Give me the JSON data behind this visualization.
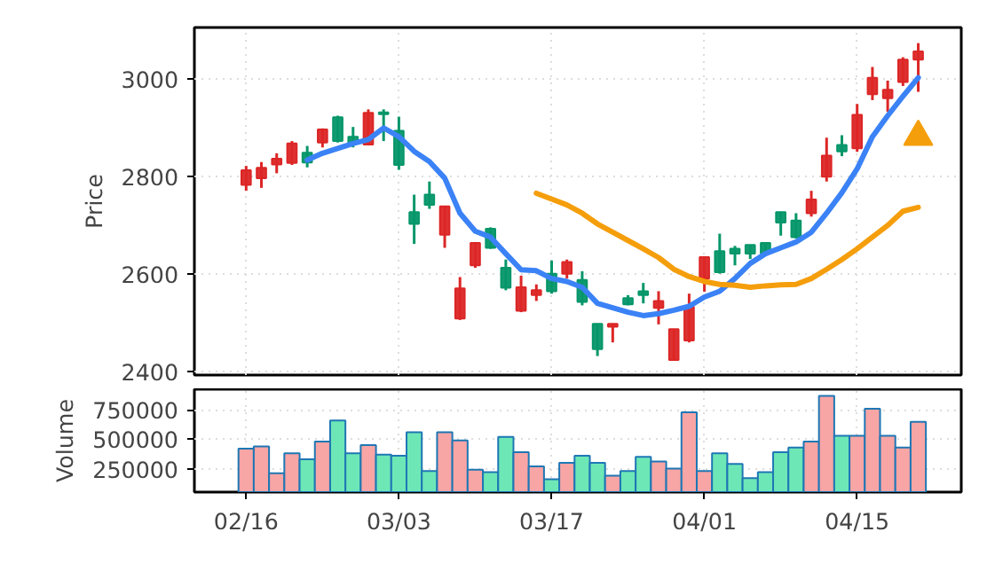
{
  "chart_data": [
    {
      "type": "candlestick",
      "ylabel": "Price",
      "categories": [
        null,
        null,
        null,
        null,
        null,
        null,
        null,
        null,
        null,
        null,
        null,
        null,
        null,
        null,
        null,
        null,
        null,
        null,
        null,
        null,
        null,
        null,
        null,
        null,
        null,
        null,
        null,
        null,
        null,
        null,
        null,
        null,
        null,
        null,
        null,
        null,
        null,
        null,
        null,
        null,
        null,
        null,
        null,
        null,
        null
      ],
      "ohlc": [
        [
          2782,
          2821,
          2770,
          2812
        ],
        [
          2796,
          2829,
          2776,
          2817
        ],
        [
          2824,
          2847,
          2806,
          2836
        ],
        [
          2827,
          2872,
          2823,
          2867
        ],
        [
          2848,
          2862,
          2818,
          2828
        ],
        [
          2869,
          2898,
          2859,
          2896
        ],
        [
          2921,
          2924,
          2869,
          2872
        ],
        [
          2881,
          2901,
          2859,
          2867
        ],
        [
          2865,
          2937,
          2863,
          2930
        ],
        [
          2931,
          2937,
          2872,
          2927
        ],
        [
          2893,
          2922,
          2813,
          2823
        ],
        [
          2726,
          2762,
          2661,
          2702
        ],
        [
          2762,
          2789,
          2733,
          2741
        ],
        [
          2680,
          2738,
          2653,
          2738
        ],
        [
          2508,
          2593,
          2505,
          2570
        ],
        [
          2617,
          2665,
          2612,
          2663
        ],
        [
          2692,
          2695,
          2651,
          2653
        ],
        [
          2612,
          2629,
          2566,
          2571
        ],
        [
          2524,
          2596,
          2521,
          2572
        ],
        [
          2556,
          2578,
          2544,
          2566
        ],
        [
          2600,
          2627,
          2559,
          2564
        ],
        [
          2600,
          2629,
          2590,
          2624
        ],
        [
          2587,
          2605,
          2535,
          2542
        ],
        [
          2497,
          2497,
          2431,
          2445
        ],
        [
          2491,
          2497,
          2459,
          2497
        ],
        [
          2550,
          2556,
          2535,
          2537
        ],
        [
          2564,
          2581,
          2539,
          2556
        ],
        [
          2530,
          2564,
          2496,
          2544
        ],
        [
          2423,
          2486,
          2423,
          2486
        ],
        [
          2463,
          2559,
          2459,
          2532
        ],
        [
          2590,
          2634,
          2563,
          2634
        ],
        [
          2646,
          2682,
          2600,
          2603
        ],
        [
          2651,
          2657,
          2617,
          2641
        ],
        [
          2659,
          2659,
          2630,
          2641
        ],
        [
          2663,
          2663,
          2639,
          2641
        ],
        [
          2726,
          2726,
          2678,
          2705
        ],
        [
          2709,
          2724,
          2672,
          2675
        ],
        [
          2724,
          2770,
          2717,
          2752
        ],
        [
          2799,
          2879,
          2789,
          2842
        ],
        [
          2864,
          2884,
          2841,
          2851
        ],
        [
          2857,
          2948,
          2850,
          2926
        ],
        [
          2968,
          3024,
          2956,
          3002
        ],
        [
          2960,
          2996,
          2932,
          2977
        ],
        [
          2993,
          3044,
          2985,
          3039
        ],
        [
          3039,
          3073,
          2973,
          3056
        ]
      ],
      "colors": [
        "#dc2626",
        "#dc2626",
        "#dc2626",
        "#dc2626",
        "#059669",
        "#dc2626",
        "#059669",
        "#059669",
        "#dc2626",
        "#059669",
        "#059669",
        "#059669",
        "#059669",
        "#dc2626",
        "#dc2626",
        "#dc2626",
        "#059669",
        "#059669",
        "#dc2626",
        "#dc2626",
        "#059669",
        "#dc2626",
        "#059669",
        "#059669",
        "#dc2626",
        "#059669",
        "#059669",
        "#dc2626",
        "#dc2626",
        "#dc2626",
        "#dc2626",
        "#059669",
        "#059669",
        "#059669",
        "#059669",
        "#059669",
        "#059669",
        "#dc2626",
        "#dc2626",
        "#059669",
        "#dc2626",
        "#dc2626",
        "#dc2626",
        "#dc2626",
        "#dc2626"
      ],
      "series": [
        {
          "type": "line",
          "color": "#3b82f6",
          "values": [
            null,
            null,
            null,
            null,
            2833,
            2847,
            2857,
            2867,
            2875,
            2899,
            2881,
            2851,
            2830,
            2796,
            2724,
            2687,
            2675,
            2641,
            2608,
            2606,
            2590,
            2584,
            2572,
            2539,
            2530,
            2521,
            2514,
            2518,
            2525,
            2533,
            2552,
            2564,
            2590,
            2621,
            2641,
            2653,
            2665,
            2685,
            2724,
            2766,
            2815,
            2881,
            2924,
            2964,
            3002
          ]
        },
        {
          "type": "line",
          "color": "#f59e0b",
          "values": [
            null,
            null,
            null,
            null,
            null,
            null,
            null,
            null,
            null,
            null,
            null,
            null,
            null,
            null,
            null,
            null,
            null,
            null,
            null,
            2765,
            2753,
            2741,
            2724,
            2702,
            2685,
            2668,
            2651,
            2633,
            2609,
            2594,
            2584,
            2578,
            2576,
            2572,
            2575,
            2577,
            2578,
            2590,
            2609,
            2629,
            2651,
            2675,
            2699,
            2728,
            2736
          ]
        },
        {
          "type": "scatter",
          "marker": "triangle",
          "color": "#f59e0b",
          "values": [
            null,
            null,
            null,
            null,
            null,
            null,
            null,
            null,
            null,
            null,
            null,
            null,
            null,
            null,
            null,
            null,
            null,
            null,
            null,
            null,
            null,
            null,
            null,
            null,
            null,
            null,
            null,
            null,
            null,
            null,
            null,
            null,
            null,
            null,
            null,
            null,
            null,
            null,
            null,
            null,
            null,
            null,
            null,
            null,
            2881
          ]
        }
      ],
      "ylim": [
        2392,
        3105
      ],
      "yticks": [
        2400,
        2600,
        2800,
        3000
      ],
      "grid": true,
      "tick_labels": "y"
    },
    {
      "type": "bar",
      "ylabel": "Volume",
      "categories": [
        "02/16",
        null,
        null,
        null,
        null,
        null,
        null,
        null,
        null,
        null,
        "03/03",
        null,
        null,
        null,
        null,
        null,
        null,
        null,
        null,
        null,
        "03/17",
        null,
        null,
        null,
        null,
        null,
        null,
        null,
        null,
        null,
        "04/01",
        null,
        null,
        null,
        null,
        null,
        null,
        null,
        null,
        null,
        "04/15",
        null,
        null,
        null,
        null
      ],
      "values": [
        420000,
        440000,
        210000,
        380000,
        330000,
        480000,
        660000,
        380000,
        450000,
        370000,
        360000,
        560000,
        230000,
        560000,
        490000,
        240000,
        220000,
        520000,
        390000,
        270000,
        160000,
        300000,
        360000,
        300000,
        190000,
        230000,
        350000,
        310000,
        250000,
        730000,
        230000,
        380000,
        290000,
        170000,
        220000,
        390000,
        430000,
        480000,
        870000,
        530000,
        530000,
        760000,
        530000,
        430000,
        650000
      ],
      "colors": [
        "#f8a5a5",
        "#f8a5a5",
        "#f8a5a5",
        "#f8a5a5",
        "#6ee7b7",
        "#f8a5a5",
        "#6ee7b7",
        "#6ee7b7",
        "#f8a5a5",
        "#6ee7b7",
        "#6ee7b7",
        "#6ee7b7",
        "#6ee7b7",
        "#f8a5a5",
        "#f8a5a5",
        "#f8a5a5",
        "#6ee7b7",
        "#6ee7b7",
        "#f8a5a5",
        "#f8a5a5",
        "#6ee7b7",
        "#f8a5a5",
        "#6ee7b7",
        "#6ee7b7",
        "#f8a5a5",
        "#6ee7b7",
        "#6ee7b7",
        "#f8a5a5",
        "#f8a5a5",
        "#f8a5a5",
        "#f8a5a5",
        "#6ee7b7",
        "#6ee7b7",
        "#6ee7b7",
        "#6ee7b7",
        "#6ee7b7",
        "#6ee7b7",
        "#f8a5a5",
        "#f8a5a5",
        "#6ee7b7",
        "#f8a5a5",
        "#f8a5a5",
        "#f8a5a5",
        "#f8a5a5",
        "#f8a5a5"
      ],
      "ylim": [
        50000,
        927000
      ],
      "yticks": [
        250000,
        500000,
        750000
      ],
      "grid": true
    }
  ]
}
